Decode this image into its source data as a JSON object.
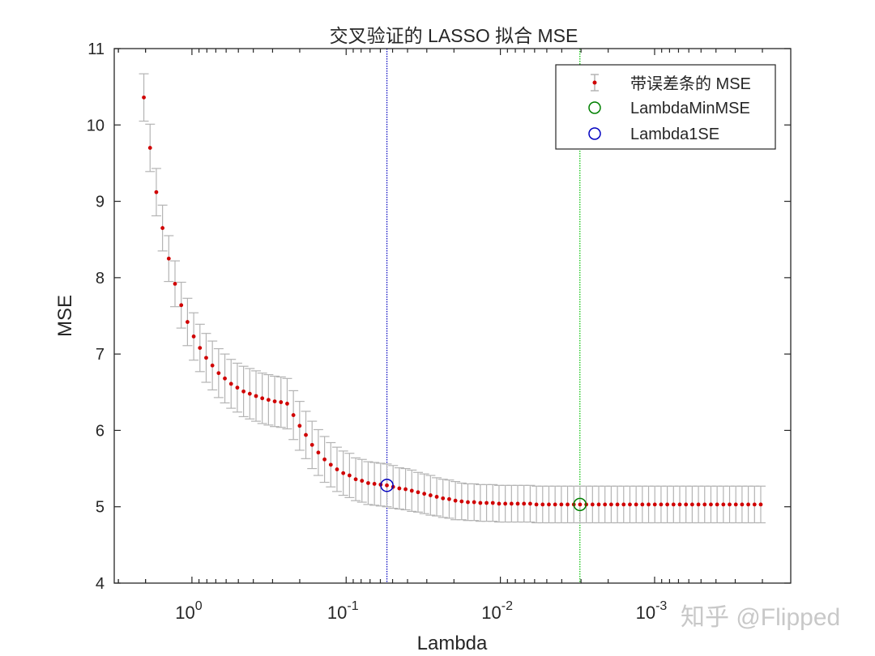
{
  "chart_data": {
    "type": "scatter",
    "title": "交叉验证的 LASSO 拟合 MSE",
    "xlabel": "Lambda",
    "ylabel": "MSE",
    "xscale": "log",
    "x_reversed": true,
    "xlim": [
      0.000131,
      3.19
    ],
    "ylim": [
      4,
      11
    ],
    "grid": false,
    "legend_position": "top-right",
    "yticks": [
      4,
      5,
      6,
      7,
      8,
      9,
      10,
      11
    ],
    "xticks": [
      {
        "base": "10",
        "exp": "0",
        "value": 1
      },
      {
        "base": "10",
        "exp": "-1",
        "value": 0.1
      },
      {
        "base": "10",
        "exp": "-2",
        "value": 0.01
      },
      {
        "base": "10",
        "exp": "-3",
        "value": 0.001
      }
    ],
    "lambda_range": [
      0.000205,
      2.05
    ],
    "n_lambda": 100,
    "series": [
      {
        "name": "带误差条的 MSE",
        "color": "#d00000",
        "error_color": "#b4b4b4",
        "mse": [
          10.36,
          9.7,
          9.12,
          8.65,
          8.25,
          7.92,
          7.64,
          7.42,
          7.23,
          7.08,
          6.95,
          6.85,
          6.75,
          6.68,
          6.61,
          6.56,
          6.51,
          6.48,
          6.45,
          6.42,
          6.4,
          6.38,
          6.37,
          6.35,
          6.2,
          6.06,
          5.94,
          5.81,
          5.71,
          5.62,
          5.55,
          5.49,
          5.44,
          5.41,
          5.36,
          5.34,
          5.31,
          5.3,
          5.29,
          5.28,
          5.26,
          5.24,
          5.23,
          5.21,
          5.19,
          5.17,
          5.15,
          5.13,
          5.11,
          5.1,
          5.08,
          5.07,
          5.06,
          5.06,
          5.05,
          5.05,
          5.05,
          5.04,
          5.04,
          5.04,
          5.04,
          5.04,
          5.04,
          5.03,
          5.03,
          5.03,
          5.03,
          5.03,
          5.03,
          5.03,
          5.03,
          5.03,
          5.03,
          5.03,
          5.03,
          5.03,
          5.03,
          5.03,
          5.03,
          5.03,
          5.03,
          5.03,
          5.03,
          5.03,
          5.03,
          5.03,
          5.03,
          5.03,
          5.03,
          5.03,
          5.03,
          5.03,
          5.03,
          5.03,
          5.03,
          5.03,
          5.03,
          5.03,
          5.03,
          5.03
        ],
        "se": [
          0.31,
          0.31,
          0.31,
          0.3,
          0.3,
          0.3,
          0.3,
          0.31,
          0.31,
          0.31,
          0.32,
          0.32,
          0.32,
          0.32,
          0.32,
          0.32,
          0.33,
          0.33,
          0.33,
          0.33,
          0.33,
          0.33,
          0.33,
          0.33,
          0.32,
          0.32,
          0.31,
          0.31,
          0.3,
          0.3,
          0.29,
          0.29,
          0.29,
          0.29,
          0.28,
          0.28,
          0.28,
          0.28,
          0.28,
          0.28,
          0.28,
          0.27,
          0.27,
          0.27,
          0.26,
          0.26,
          0.26,
          0.25,
          0.25,
          0.25,
          0.25,
          0.24,
          0.24,
          0.24,
          0.24,
          0.24,
          0.24,
          0.24,
          0.24,
          0.24,
          0.24,
          0.24,
          0.24,
          0.24,
          0.24,
          0.24,
          0.24,
          0.24,
          0.24,
          0.24,
          0.24,
          0.24,
          0.24,
          0.24,
          0.24,
          0.24,
          0.24,
          0.24,
          0.24,
          0.24,
          0.24,
          0.24,
          0.24,
          0.24,
          0.24,
          0.24,
          0.24,
          0.24,
          0.24,
          0.24,
          0.24,
          0.24,
          0.24,
          0.24,
          0.24,
          0.24,
          0.24,
          0.24,
          0.24,
          0.24
        ]
      },
      {
        "name": "LambdaMinMSE",
        "color": "#008000",
        "lambda": 0.00305,
        "mse": 5.03
      },
      {
        "name": "Lambda1SE",
        "color": "#0000c0",
        "lambda": 0.0544,
        "mse": 5.28
      }
    ]
  },
  "watermark": "知乎 @Flipped"
}
